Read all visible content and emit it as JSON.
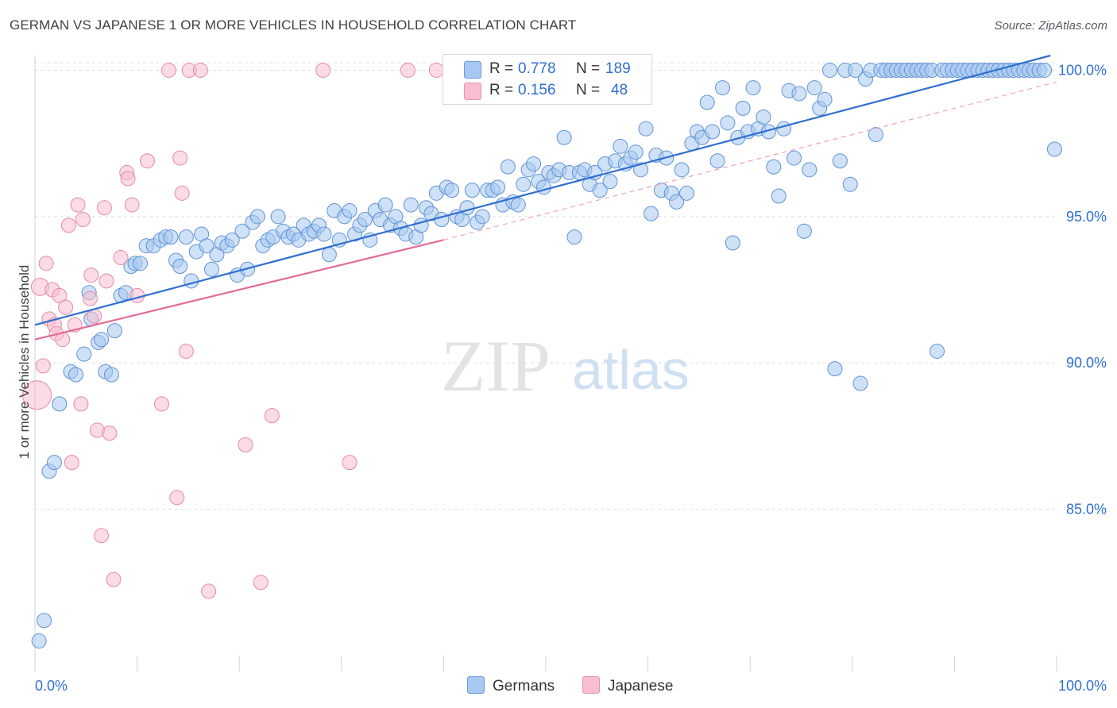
{
  "title": "GERMAN VS JAPANESE 1 OR MORE VEHICLES IN HOUSEHOLD CORRELATION CHART",
  "source": "Source: ZipAtlas.com",
  "watermark": {
    "zip": "ZIP",
    "atlas": "atlas"
  },
  "stats": {
    "germans": {
      "r_label": "R =",
      "r": "0.778",
      "n_label": "N =",
      "n": "189",
      "color": "#a7c8f0"
    },
    "japanese": {
      "r_label": "R =",
      "r": "0.156",
      "n_label": "N =",
      "n": "48",
      "color": "#f8bdd0"
    }
  },
  "legend": [
    {
      "label": "Germans",
      "color": "#a7c8f0"
    },
    {
      "label": "Japanese",
      "color": "#f8bdd0"
    }
  ],
  "chart_data": {
    "type": "scatter",
    "title": "GERMAN VS JAPANESE 1 OR MORE VEHICLES IN HOUSEHOLD CORRELATION CHART",
    "xlabel": "",
    "ylabel": "1 or more Vehicles in Household",
    "xlim": [
      0,
      100
    ],
    "ylim": [
      80,
      100.5
    ],
    "x_tick_labels": [
      "0.0%",
      "100.0%"
    ],
    "y_ticks": [
      85,
      90,
      95,
      100
    ],
    "y_tick_labels": [
      "85.0%",
      "90.0%",
      "95.0%",
      "100.0%"
    ],
    "grid": true,
    "legend_position": "bottom",
    "series": [
      {
        "name": "Germans",
        "color": "#a7c8f0",
        "edge": "#5f93d6",
        "trend": {
          "x": [
            0,
            99.4
          ],
          "y": [
            91.3,
            100.5
          ],
          "color": "#2f6fd0"
        },
        "points": [
          [
            0.4,
            80.5
          ],
          [
            0.9,
            81.2
          ],
          [
            1.4,
            86.3
          ],
          [
            1.9,
            86.6
          ],
          [
            2.4,
            88.6
          ],
          [
            3.5,
            89.7
          ],
          [
            4.0,
            89.6
          ],
          [
            4.8,
            90.3
          ],
          [
            5.5,
            91.5
          ],
          [
            5.3,
            92.4
          ],
          [
            6.2,
            90.7
          ],
          [
            6.5,
            90.8
          ],
          [
            6.9,
            89.7
          ],
          [
            7.5,
            89.6
          ],
          [
            7.8,
            91.1
          ],
          [
            8.4,
            92.3
          ],
          [
            8.9,
            92.4
          ],
          [
            9.4,
            93.3
          ],
          [
            9.8,
            93.4
          ],
          [
            10.3,
            93.4
          ],
          [
            10.9,
            94.0
          ],
          [
            11.6,
            94.0
          ],
          [
            12.3,
            94.2
          ],
          [
            12.8,
            94.3
          ],
          [
            13.3,
            94.3
          ],
          [
            13.8,
            93.5
          ],
          [
            14.2,
            93.3
          ],
          [
            14.8,
            94.3
          ],
          [
            15.3,
            92.8
          ],
          [
            15.8,
            93.8
          ],
          [
            16.3,
            94.4
          ],
          [
            16.8,
            94.0
          ],
          [
            17.3,
            93.2
          ],
          [
            17.8,
            93.7
          ],
          [
            18.3,
            94.1
          ],
          [
            18.8,
            94.0
          ],
          [
            19.3,
            94.2
          ],
          [
            19.8,
            93.0
          ],
          [
            20.3,
            94.5
          ],
          [
            20.8,
            93.2
          ],
          [
            21.3,
            94.8
          ],
          [
            21.8,
            95.0
          ],
          [
            22.3,
            94.0
          ],
          [
            22.8,
            94.2
          ],
          [
            23.3,
            94.3
          ],
          [
            23.8,
            95.0
          ],
          [
            24.3,
            94.5
          ],
          [
            24.8,
            94.3
          ],
          [
            25.3,
            94.4
          ],
          [
            25.8,
            94.2
          ],
          [
            26.3,
            94.7
          ],
          [
            26.8,
            94.4
          ],
          [
            27.3,
            94.5
          ],
          [
            27.8,
            94.7
          ],
          [
            28.3,
            94.4
          ],
          [
            28.8,
            93.7
          ],
          [
            29.3,
            95.2
          ],
          [
            29.8,
            94.2
          ],
          [
            30.3,
            95.0
          ],
          [
            30.8,
            95.2
          ],
          [
            31.3,
            94.4
          ],
          [
            31.8,
            94.7
          ],
          [
            32.3,
            94.9
          ],
          [
            32.8,
            94.2
          ],
          [
            33.3,
            95.2
          ],
          [
            33.8,
            94.9
          ],
          [
            34.3,
            95.4
          ],
          [
            34.8,
            94.7
          ],
          [
            35.3,
            95.0
          ],
          [
            35.8,
            94.6
          ],
          [
            36.3,
            94.4
          ],
          [
            36.8,
            95.4
          ],
          [
            37.3,
            94.3
          ],
          [
            37.8,
            94.7
          ],
          [
            38.3,
            95.3
          ],
          [
            38.8,
            95.1
          ],
          [
            39.3,
            95.8
          ],
          [
            39.8,
            94.9
          ],
          [
            40.3,
            96.0
          ],
          [
            40.8,
            95.9
          ],
          [
            41.3,
            95.0
          ],
          [
            41.8,
            94.9
          ],
          [
            42.3,
            95.3
          ],
          [
            42.8,
            95.9
          ],
          [
            43.3,
            94.8
          ],
          [
            43.8,
            95.0
          ],
          [
            44.3,
            95.9
          ],
          [
            44.8,
            95.9
          ],
          [
            45.3,
            96.0
          ],
          [
            45.8,
            95.4
          ],
          [
            46.3,
            96.7
          ],
          [
            46.8,
            95.5
          ],
          [
            47.3,
            95.4
          ],
          [
            47.8,
            96.1
          ],
          [
            48.3,
            96.6
          ],
          [
            48.8,
            96.8
          ],
          [
            49.3,
            96.2
          ],
          [
            49.8,
            96.0
          ],
          [
            50.3,
            96.5
          ],
          [
            50.8,
            96.4
          ],
          [
            51.3,
            96.6
          ],
          [
            51.8,
            97.7
          ],
          [
            52.3,
            96.5
          ],
          [
            52.8,
            94.3
          ],
          [
            53.3,
            96.5
          ],
          [
            53.8,
            96.6
          ],
          [
            54.3,
            96.1
          ],
          [
            54.8,
            96.5
          ],
          [
            55.3,
            95.9
          ],
          [
            55.8,
            96.8
          ],
          [
            56.3,
            96.2
          ],
          [
            56.8,
            96.9
          ],
          [
            57.3,
            97.4
          ],
          [
            57.8,
            96.8
          ],
          [
            58.3,
            97.0
          ],
          [
            58.8,
            97.2
          ],
          [
            59.3,
            96.6
          ],
          [
            59.8,
            98.0
          ],
          [
            60.3,
            95.1
          ],
          [
            60.8,
            97.1
          ],
          [
            61.3,
            95.9
          ],
          [
            61.8,
            97.0
          ],
          [
            62.3,
            95.8
          ],
          [
            62.8,
            95.5
          ],
          [
            63.3,
            96.6
          ],
          [
            63.8,
            95.8
          ],
          [
            64.3,
            97.5
          ],
          [
            64.8,
            97.9
          ],
          [
            65.3,
            97.7
          ],
          [
            65.8,
            98.9
          ],
          [
            66.3,
            97.9
          ],
          [
            66.8,
            96.9
          ],
          [
            67.3,
            99.4
          ],
          [
            67.8,
            98.2
          ],
          [
            68.3,
            94.1
          ],
          [
            68.8,
            97.7
          ],
          [
            69.3,
            98.7
          ],
          [
            69.8,
            97.9
          ],
          [
            70.3,
            99.4
          ],
          [
            70.8,
            98.0
          ],
          [
            71.3,
            98.4
          ],
          [
            71.8,
            97.9
          ],
          [
            72.3,
            96.7
          ],
          [
            72.8,
            95.7
          ],
          [
            73.3,
            98.0
          ],
          [
            73.8,
            99.3
          ],
          [
            74.3,
            97.0
          ],
          [
            74.8,
            99.2
          ],
          [
            75.3,
            94.5
          ],
          [
            75.8,
            96.6
          ],
          [
            76.3,
            99.4
          ],
          [
            76.8,
            98.7
          ],
          [
            77.3,
            99.0
          ],
          [
            77.8,
            100.0
          ],
          [
            78.3,
            89.8
          ],
          [
            78.8,
            96.9
          ],
          [
            79.3,
            100.0
          ],
          [
            79.8,
            96.1
          ],
          [
            80.3,
            100.0
          ],
          [
            80.8,
            89.3
          ],
          [
            81.3,
            99.7
          ],
          [
            81.8,
            100.0
          ],
          [
            82.3,
            97.8
          ],
          [
            82.8,
            100.0
          ],
          [
            83.3,
            100.0
          ],
          [
            83.8,
            100.0
          ],
          [
            84.3,
            100.0
          ],
          [
            84.8,
            100.0
          ],
          [
            85.3,
            100.0
          ],
          [
            85.8,
            100.0
          ],
          [
            86.3,
            100.0
          ],
          [
            86.8,
            100.0
          ],
          [
            87.3,
            100.0
          ],
          [
            87.8,
            100.0
          ],
          [
            88.3,
            90.4
          ],
          [
            88.8,
            100.0
          ],
          [
            89.3,
            100.0
          ],
          [
            89.8,
            100.0
          ],
          [
            90.3,
            100.0
          ],
          [
            90.8,
            100.0
          ],
          [
            91.3,
            100.0
          ],
          [
            91.8,
            100.0
          ],
          [
            92.3,
            100.0
          ],
          [
            92.8,
            100.0
          ],
          [
            93.3,
            100.0
          ],
          [
            93.8,
            100.0
          ],
          [
            94.3,
            100.0
          ],
          [
            94.8,
            100.0
          ],
          [
            95.3,
            100.0
          ],
          [
            95.8,
            100.0
          ],
          [
            96.3,
            100.0
          ],
          [
            96.8,
            100.0
          ],
          [
            97.3,
            100.0
          ],
          [
            97.8,
            100.0
          ],
          [
            98.3,
            100.0
          ],
          [
            98.8,
            100.0
          ],
          [
            99.8,
            97.3
          ]
        ]
      },
      {
        "name": "Japanese",
        "color": "#f8bdd0",
        "edge": "#e58aa8",
        "trend": {
          "x": [
            0,
            40.0
          ],
          "y": [
            90.8,
            94.2
          ],
          "color": "#e36a96"
        },
        "trend_ext": {
          "x": [
            40.0,
            100
          ],
          "y": [
            94.2,
            99.6
          ]
        },
        "points": [
          [
            0.2,
            88.9
          ],
          [
            0.5,
            92.6
          ],
          [
            0.8,
            89.9
          ],
          [
            1.1,
            93.4
          ],
          [
            1.4,
            91.5
          ],
          [
            1.7,
            92.5
          ],
          [
            1.9,
            91.3
          ],
          [
            2.1,
            91.0
          ],
          [
            2.4,
            92.3
          ],
          [
            2.7,
            90.8
          ],
          [
            3.0,
            91.9
          ],
          [
            3.3,
            94.7
          ],
          [
            3.6,
            86.6
          ],
          [
            3.9,
            91.3
          ],
          [
            4.2,
            95.4
          ],
          [
            4.5,
            88.6
          ],
          [
            4.7,
            94.9
          ],
          [
            5.4,
            92.2
          ],
          [
            5.5,
            93.0
          ],
          [
            5.8,
            91.6
          ],
          [
            6.1,
            87.7
          ],
          [
            6.5,
            84.1
          ],
          [
            6.8,
            95.3
          ],
          [
            7.0,
            92.8
          ],
          [
            7.3,
            87.6
          ],
          [
            7.7,
            82.6
          ],
          [
            8.4,
            93.6
          ],
          [
            9.0,
            96.5
          ],
          [
            9.1,
            96.3
          ],
          [
            9.5,
            95.4
          ],
          [
            10.0,
            92.3
          ],
          [
            11.0,
            96.9
          ],
          [
            12.4,
            88.6
          ],
          [
            13.1,
            100.0
          ],
          [
            13.9,
            85.4
          ],
          [
            14.2,
            97.0
          ],
          [
            14.4,
            95.8
          ],
          [
            14.8,
            90.4
          ],
          [
            15.1,
            100.0
          ],
          [
            16.2,
            100.0
          ],
          [
            17.0,
            82.2
          ],
          [
            20.6,
            87.2
          ],
          [
            22.1,
            82.5
          ],
          [
            23.2,
            88.2
          ],
          [
            28.2,
            100.0
          ],
          [
            30.8,
            86.6
          ],
          [
            36.5,
            100.0
          ],
          [
            39.3,
            100.0
          ]
        ]
      }
    ]
  }
}
